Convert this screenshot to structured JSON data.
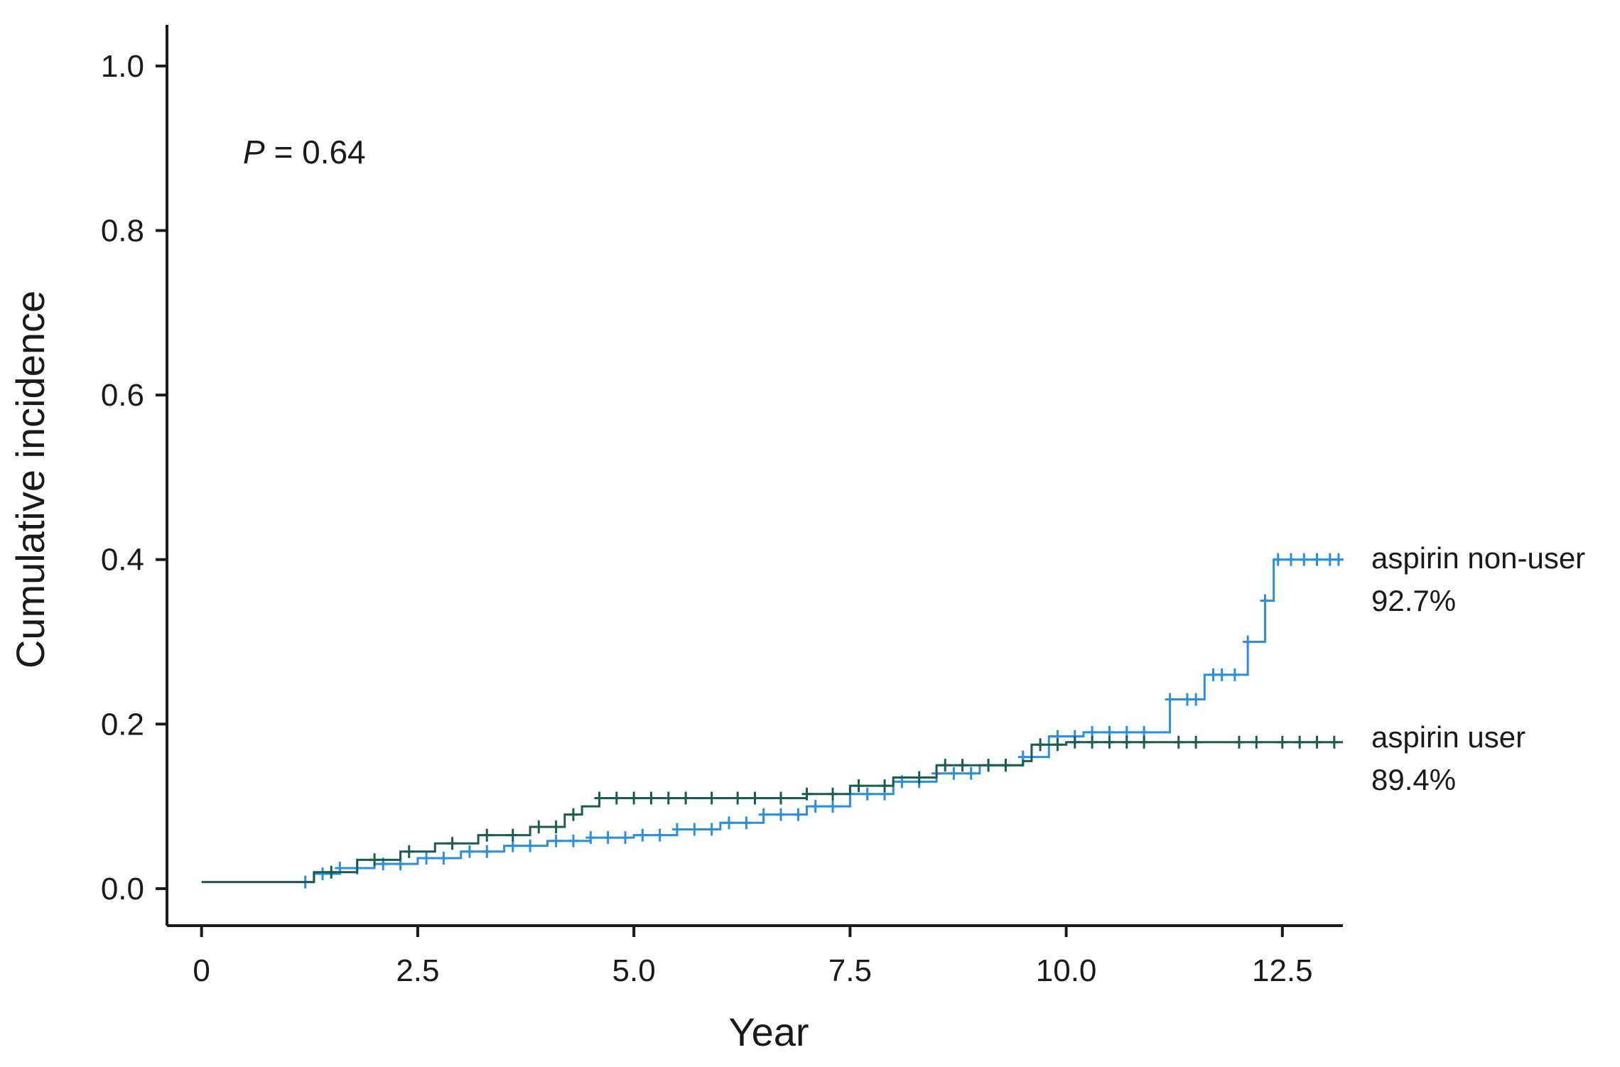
{
  "chart_data": {
    "type": "line",
    "chart_kind": "cumulative incidence step curve",
    "xlabel": "Year",
    "ylabel": "Cumulative incidence",
    "xlim": [
      -0.4,
      13.2
    ],
    "ylim": [
      -0.045,
      1.05
    ],
    "x_ticks": [
      0,
      2.5,
      5.0,
      7.5,
      10.0,
      12.5
    ],
    "x_tick_labels": [
      "0",
      "2.5",
      "5.0",
      "7.5",
      "10.0",
      "12.5"
    ],
    "y_ticks": [
      0.0,
      0.2,
      0.4,
      0.6,
      0.8,
      1.0
    ],
    "y_tick_labels": [
      "0.0",
      "0.2",
      "0.4",
      "0.6",
      "0.8",
      "1.0"
    ],
    "annotation": {
      "label": "P",
      "text": " = 0.64",
      "x": 0.05,
      "y": 0.9
    },
    "series": [
      {
        "name": "aspirin non-user",
        "percent": "92.7%",
        "color": "#2b8fe0",
        "x": [
          0,
          1.05,
          1.3,
          1.6,
          2.0,
          2.5,
          3.0,
          3.5,
          4.0,
          4.5,
          5.0,
          5.5,
          6.0,
          6.5,
          7.0,
          7.5,
          8.0,
          8.5,
          9.0,
          9.5,
          9.8,
          10.2,
          11.0,
          11.2,
          11.3,
          11.6,
          12.1,
          12.3,
          12.4,
          13.2
        ],
        "y": [
          0.008,
          0.008,
          0.018,
          0.025,
          0.03,
          0.037,
          0.045,
          0.052,
          0.058,
          0.062,
          0.065,
          0.072,
          0.08,
          0.09,
          0.1,
          0.115,
          0.13,
          0.14,
          0.15,
          0.16,
          0.185,
          0.19,
          0.19,
          0.23,
          0.23,
          0.26,
          0.3,
          0.35,
          0.4,
          0.4
        ],
        "censor_x": [
          1.2,
          1.4,
          1.6,
          1.8,
          2.1,
          2.3,
          2.6,
          2.8,
          3.1,
          3.3,
          3.6,
          3.8,
          4.1,
          4.3,
          4.5,
          4.7,
          4.9,
          5.1,
          5.3,
          5.5,
          5.7,
          5.9,
          6.1,
          6.3,
          6.5,
          6.7,
          6.9,
          7.1,
          7.3,
          7.5,
          7.7,
          7.9,
          8.1,
          8.3,
          8.5,
          8.7,
          8.9,
          9.1,
          9.3,
          9.5,
          9.9,
          10.1,
          10.3,
          10.5,
          10.7,
          10.9,
          11.2,
          11.4,
          11.5,
          11.7,
          11.8,
          11.95,
          12.1,
          12.3,
          12.45,
          12.6,
          12.75,
          12.9,
          13.05,
          13.15
        ]
      },
      {
        "name": "aspirin user",
        "percent": "89.4%",
        "color": "#1a5d50",
        "x": [
          0,
          1.05,
          1.3,
          1.8,
          2.3,
          2.7,
          3.2,
          3.8,
          4.2,
          4.4,
          4.6,
          6.0,
          7.0,
          7.5,
          8.0,
          8.5,
          9.0,
          9.5,
          9.6,
          10.0,
          13.2
        ],
        "y": [
          0.008,
          0.008,
          0.02,
          0.035,
          0.045,
          0.055,
          0.065,
          0.075,
          0.09,
          0.1,
          0.11,
          0.11,
          0.115,
          0.125,
          0.135,
          0.15,
          0.15,
          0.155,
          0.175,
          0.178,
          0.178
        ],
        "censor_x": [
          1.5,
          2.0,
          2.4,
          2.9,
          3.3,
          3.6,
          3.9,
          4.1,
          4.3,
          4.6,
          4.8,
          5.0,
          5.2,
          5.4,
          5.6,
          5.9,
          6.2,
          6.4,
          6.7,
          7.0,
          7.3,
          7.6,
          7.9,
          8.3,
          8.6,
          8.8,
          9.1,
          9.3,
          9.7,
          9.9,
          10.1,
          10.3,
          10.5,
          10.7,
          10.9,
          11.3,
          11.5,
          12.0,
          12.2,
          12.5,
          12.7,
          12.9,
          13.1
        ]
      }
    ]
  }
}
